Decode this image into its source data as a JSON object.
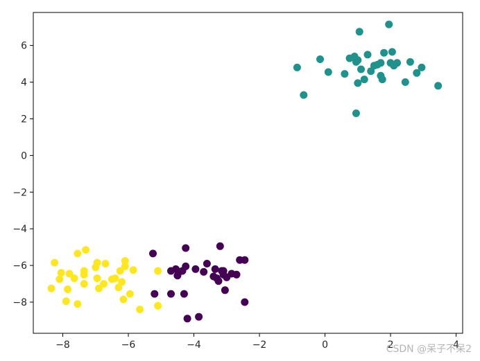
{
  "chart_data": {
    "type": "scatter",
    "title": "",
    "xlabel": "",
    "ylabel": "",
    "xlim": [
      -8.9,
      4.2
    ],
    "ylim": [
      -9.7,
      7.8
    ],
    "xticks": [
      -8,
      -6,
      -4,
      -2,
      0,
      2,
      4
    ],
    "yticks": [
      -8,
      -6,
      -4,
      -2,
      0,
      2,
      4,
      6
    ],
    "xtick_labels": [
      "−8",
      "−6",
      "−4",
      "−2",
      "0",
      "2",
      "4"
    ],
    "ytick_labels": [
      "−8",
      "−6",
      "−4",
      "−2",
      "0",
      "2",
      "4",
      "6"
    ],
    "grid": false,
    "legend": "none",
    "series": [
      {
        "color": "#440154",
        "points": [
          [
            -5.25,
            -5.35
          ],
          [
            -5.2,
            -7.55
          ],
          [
            -4.7,
            -6.3
          ],
          [
            -4.7,
            -7.55
          ],
          [
            -4.55,
            -6.2
          ],
          [
            -4.5,
            -6.55
          ],
          [
            -4.45,
            -6.35
          ],
          [
            -4.35,
            -6.3
          ],
          [
            -4.3,
            -7.55
          ],
          [
            -4.25,
            -6.05
          ],
          [
            -4.25,
            -5.05
          ],
          [
            -4.2,
            -8.9
          ],
          [
            -3.95,
            -6.2
          ],
          [
            -3.85,
            -8.8
          ],
          [
            -3.7,
            -6.35
          ],
          [
            -3.6,
            -5.9
          ],
          [
            -3.4,
            -6.6
          ],
          [
            -3.35,
            -6.2
          ],
          [
            -3.3,
            -6.7
          ],
          [
            -3.25,
            -6.85
          ],
          [
            -3.2,
            -4.95
          ],
          [
            -3.15,
            -6.3
          ],
          [
            -3.1,
            -6.5
          ],
          [
            -3.05,
            -7.35
          ],
          [
            -3.0,
            -6.65
          ],
          [
            -2.85,
            -6.45
          ],
          [
            -2.7,
            -6.5
          ],
          [
            -2.6,
            -5.7
          ],
          [
            -2.45,
            -5.7
          ],
          [
            -2.45,
            -8.0
          ],
          [
            -3.1,
            -6.3
          ]
        ]
      },
      {
        "color": "#21918c",
        "points": [
          [
            -0.85,
            4.8
          ],
          [
            -0.65,
            3.3
          ],
          [
            -0.15,
            5.25
          ],
          [
            0.1,
            4.55
          ],
          [
            0.6,
            4.45
          ],
          [
            0.75,
            5.3
          ],
          [
            0.9,
            5.4
          ],
          [
            0.95,
            5.1
          ],
          [
            0.95,
            2.3
          ],
          [
            1.0,
            5.2
          ],
          [
            1.0,
            3.95
          ],
          [
            1.05,
            6.75
          ],
          [
            1.1,
            4.7
          ],
          [
            1.2,
            4.15
          ],
          [
            1.3,
            5.5
          ],
          [
            1.4,
            4.6
          ],
          [
            1.5,
            4.9
          ],
          [
            1.7,
            4.35
          ],
          [
            1.7,
            5.05
          ],
          [
            1.75,
            4.15
          ],
          [
            1.8,
            5.6
          ],
          [
            1.95,
            7.15
          ],
          [
            2.0,
            5.05
          ],
          [
            2.05,
            5.65
          ],
          [
            2.1,
            4.9
          ],
          [
            2.2,
            5.05
          ],
          [
            2.45,
            4.0
          ],
          [
            2.6,
            5.1
          ],
          [
            2.8,
            4.5
          ],
          [
            2.95,
            4.8
          ],
          [
            3.45,
            3.8
          ],
          [
            1.6,
            4.95
          ]
        ]
      },
      {
        "color": "#fde725",
        "points": [
          [
            -8.35,
            -7.25
          ],
          [
            -8.25,
            -5.85
          ],
          [
            -8.1,
            -6.75
          ],
          [
            -8.05,
            -6.4
          ],
          [
            -7.9,
            -7.95
          ],
          [
            -7.85,
            -7.3
          ],
          [
            -7.8,
            -6.45
          ],
          [
            -7.65,
            -6.7
          ],
          [
            -7.55,
            -8.1
          ],
          [
            -7.55,
            -5.35
          ],
          [
            -7.35,
            -6.3
          ],
          [
            -7.35,
            -6.5
          ],
          [
            -7.3,
            -5.15
          ],
          [
            -7.35,
            -7.0
          ],
          [
            -7.0,
            -6.1
          ],
          [
            -6.95,
            -5.85
          ],
          [
            -6.95,
            -6.7
          ],
          [
            -6.9,
            -7.25
          ],
          [
            -6.75,
            -7.0
          ],
          [
            -6.7,
            -5.9
          ],
          [
            -6.4,
            -6.7
          ],
          [
            -6.3,
            -7.2
          ],
          [
            -6.25,
            -6.3
          ],
          [
            -6.2,
            -6.9
          ],
          [
            -6.15,
            -7.85
          ],
          [
            -6.1,
            -6.05
          ],
          [
            -6.1,
            -5.75
          ],
          [
            -5.95,
            -7.55
          ],
          [
            -5.85,
            -6.25
          ],
          [
            -5.65,
            -8.4
          ],
          [
            -5.1,
            -6.3
          ],
          [
            -5.1,
            -8.2
          ],
          [
            -6.5,
            -6.75
          ]
        ]
      }
    ]
  },
  "watermark": "CSDN @呆子不呆2"
}
